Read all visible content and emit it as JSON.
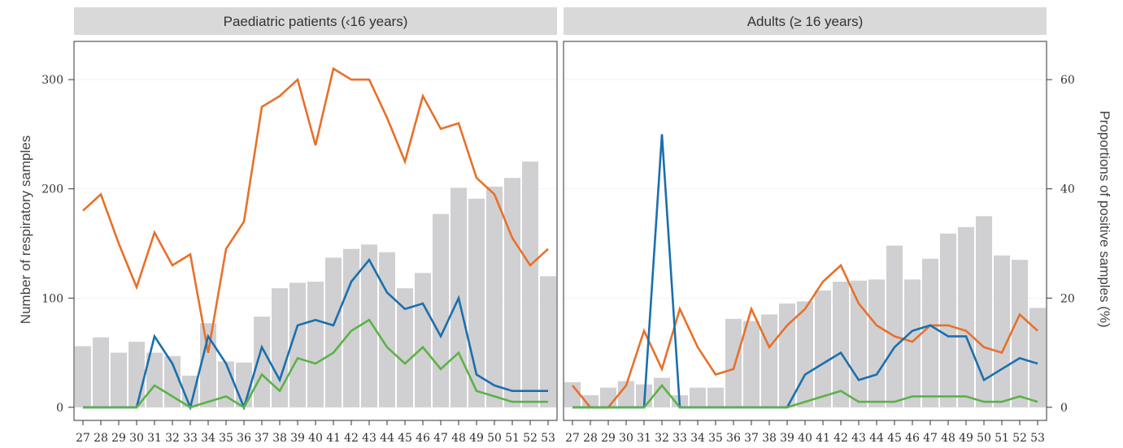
{
  "chart_data": {
    "type": "bar+line",
    "y_left_label": "Number of respiratory samples",
    "y_right_label": "Proportions of positive samples (%)",
    "y_left_ticks": [
      0,
      100,
      200,
      300
    ],
    "y_right_ticks": [
      0,
      20,
      40,
      60
    ],
    "y_left_lim": [
      -12,
      335
    ],
    "y_right_lim": [
      -2.4,
      67
    ],
    "weeks": [
      "27",
      "28",
      "29",
      "30",
      "31",
      "32",
      "33",
      "34",
      "35",
      "36",
      "37",
      "38",
      "39",
      "40",
      "41",
      "42",
      "43",
      "44",
      "45",
      "46",
      "47",
      "48",
      "49",
      "50",
      "51",
      "52",
      "53"
    ],
    "colors": {
      "bars": "#d0d0d2",
      "orange": "#e8702a",
      "blue": "#1a6fae",
      "green": "#5bb246",
      "strip": "#d9d9d9",
      "gridline": "#f2f2f2"
    },
    "panels": [
      {
        "title": "Paediatric patients (‹16 years)",
        "bars": [
          56,
          64,
          50,
          60,
          50,
          47,
          29,
          77,
          42,
          41,
          83,
          109,
          114,
          115,
          137,
          145,
          149,
          142,
          109,
          123,
          177,
          201,
          191,
          202,
          210,
          225,
          120
        ],
        "series": [
          {
            "color": "orange",
            "values": [
              36,
              39,
              30,
              22,
              32,
              26,
              28,
              10,
              29,
              34,
              55,
              57,
              60,
              48,
              62,
              60,
              60,
              53,
              45,
              57,
              51,
              52,
              42,
              39,
              31,
              26,
              29
            ]
          },
          {
            "color": "blue",
            "values": [
              0,
              0,
              0,
              0,
              13,
              8,
              0,
              13,
              8,
              0,
              11,
              5,
              15,
              16,
              15,
              23,
              27,
              21,
              18,
              19,
              13,
              20,
              6,
              4,
              3,
              3,
              3
            ]
          },
          {
            "color": "green",
            "values": [
              0,
              0,
              0,
              0,
              4,
              2,
              0,
              1,
              2,
              0,
              6,
              3,
              9,
              8,
              10,
              14,
              16,
              11,
              8,
              11,
              7,
              10,
              3,
              2,
              1,
              1,
              1
            ]
          }
        ]
      },
      {
        "title": "Adults (≥ 16 years)",
        "bars": [
          23,
          11,
          18,
          24,
          21,
          27,
          11,
          18,
          18,
          81,
          79,
          85,
          95,
          97,
          107,
          115,
          116,
          117,
          148,
          117,
          136,
          159,
          165,
          175,
          139,
          135,
          91
        ],
        "series": [
          {
            "color": "orange",
            "values": [
              4,
              0,
              0,
              4,
              14,
              7,
              18,
              11,
              6,
              7,
              18,
              11,
              15,
              18,
              23,
              26,
              19,
              15,
              13,
              12,
              15,
              15,
              14,
              11,
              10,
              17,
              14
            ]
          },
          {
            "color": "blue",
            "values": [
              0,
              0,
              0,
              0,
              0,
              50,
              0,
              0,
              0,
              0,
              0,
              0,
              0,
              6,
              8,
              10,
              5,
              6,
              11,
              14,
              15,
              13,
              13,
              5,
              7,
              9,
              8
            ]
          },
          {
            "color": "green",
            "values": [
              0,
              0,
              0,
              0,
              0,
              4,
              0,
              0,
              0,
              0,
              0,
              0,
              0,
              1,
              2,
              3,
              1,
              1,
              1,
              2,
              2,
              2,
              2,
              1,
              1,
              2,
              1
            ]
          }
        ]
      }
    ]
  }
}
